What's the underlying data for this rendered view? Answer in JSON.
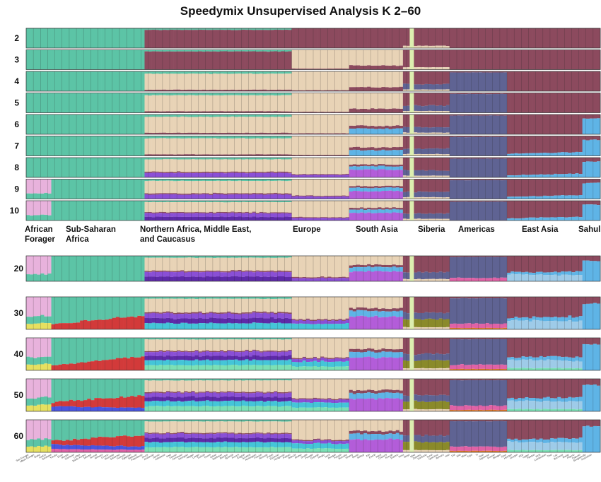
{
  "title": "Speedymix Unsupervised Analysis K 2–60",
  "chart_data": {
    "type": "stacked-bar-admixture",
    "title": "Speedymix Unsupervised Analysis K 2–60",
    "k_values": [
      "2",
      "3",
      "4",
      "5",
      "6",
      "7",
      "8",
      "9",
      "10",
      "20",
      "30",
      "40",
      "50",
      "60"
    ],
    "regions": [
      {
        "name": "African Forager",
        "lines": [
          "African",
          "Forager"
        ]
      },
      {
        "name": "Sub-Saharan Africa",
        "lines": [
          "Sub-Saharan",
          "Africa"
        ]
      },
      {
        "name": "Northern Africa, Middle East, and Caucasus",
        "lines": [
          "Northern Africa, Middle East,",
          "and Caucasus"
        ]
      },
      {
        "name": "Europe",
        "lines": [
          "Europe"
        ]
      },
      {
        "name": "South Asia",
        "lines": [
          "South Asia"
        ]
      },
      {
        "name": "Siberia",
        "lines": [
          "Siberia"
        ]
      },
      {
        "name": "Americas",
        "lines": [
          "Americas"
        ]
      },
      {
        "name": "East Asia",
        "lines": [
          "East Asia"
        ]
      },
      {
        "name": "Sahul",
        "lines": [
          "Sahul"
        ]
      }
    ],
    "region_span_fraction": [
      0.045,
      0.175,
      0.27,
      0.105,
      0.1,
      0.085,
      0.105,
      0.14,
      0.03
    ],
    "ancestry_colors": {
      "african": "#5cc4a6",
      "west_eurasian": "#e8d3b6",
      "east_asian": "#8c4a5e",
      "american": "#5f6393",
      "sahul": "#5fb4e6",
      "middle_east": "#8a4fd6",
      "south_asian": "#b35dd9",
      "forager": "#e8b2dc",
      "caucasus": "#5e2aa8",
      "siberia_isolate": "#ddeeb0",
      "extra_red": "#d23a3a",
      "extra_blue": "#4a55e0",
      "extra_cyan": "#44c5d8",
      "extra_green": "#7be0b5",
      "extra_lightblue": "#9ecbe8",
      "extra_pink": "#e062a6",
      "extra_yellow": "#e6e060",
      "extra_olive": "#8a8a2a",
      "extra_orange": "#e07a2a"
    },
    "population_labels": [
      "San Forager",
      "Mbuti Forager",
      "Biaka",
      "Hadza",
      "Sandawe",
      "Yoruba",
      "Esan",
      "Mende",
      "Gambian",
      "Luhya",
      "Bantu Kenya",
      "Maasai",
      "Somali",
      "Amhara",
      "Oromo",
      "Mozabite",
      "Saharawi",
      "Tunisian",
      "Egyptian",
      "Bedouin",
      "Palestinian",
      "Druze",
      "Jordanian",
      "Syrian",
      "Lebanese",
      "Iraqi",
      "Iranian",
      "Armenian",
      "Georgian",
      "Adygei",
      "Lezgin",
      "Turkish",
      "Greek",
      "Italian",
      "Sardinian",
      "Basque",
      "Spanish",
      "French",
      "English",
      "Scottish",
      "Norwegian",
      "Finnish",
      "Russian",
      "Polish",
      "Estonian",
      "Hungarian",
      "Pathan",
      "Balochi",
      "Brahui",
      "Sindhi",
      "Punjabi",
      "Gujarati",
      "Telugu",
      "Tamil",
      "Bengali",
      "Kalash",
      "Burusho",
      "Khanty",
      "Mansi",
      "Selkup",
      "Ket",
      "Evenk",
      "Yakut",
      "Chukchi",
      "Koryak",
      "Eskimo",
      "Pima",
      "Maya",
      "Mixe",
      "Zapotec",
      "Karitiana",
      "Surui",
      "Quechua",
      "Aymara",
      "Han",
      "Dai",
      "She",
      "Miao",
      "Tujia",
      "Yi",
      "Naxi",
      "Japanese",
      "Korean",
      "Mongol",
      "Daur",
      "Hezhen",
      "Oroqen",
      "Xibo",
      "Uygur",
      "Tibetan",
      "Kinh",
      "Cambodian",
      "Thai",
      "Lao",
      "Burmese",
      "Malay",
      "Filipino",
      "Papuan",
      "Bougainville",
      "Australian"
    ]
  }
}
